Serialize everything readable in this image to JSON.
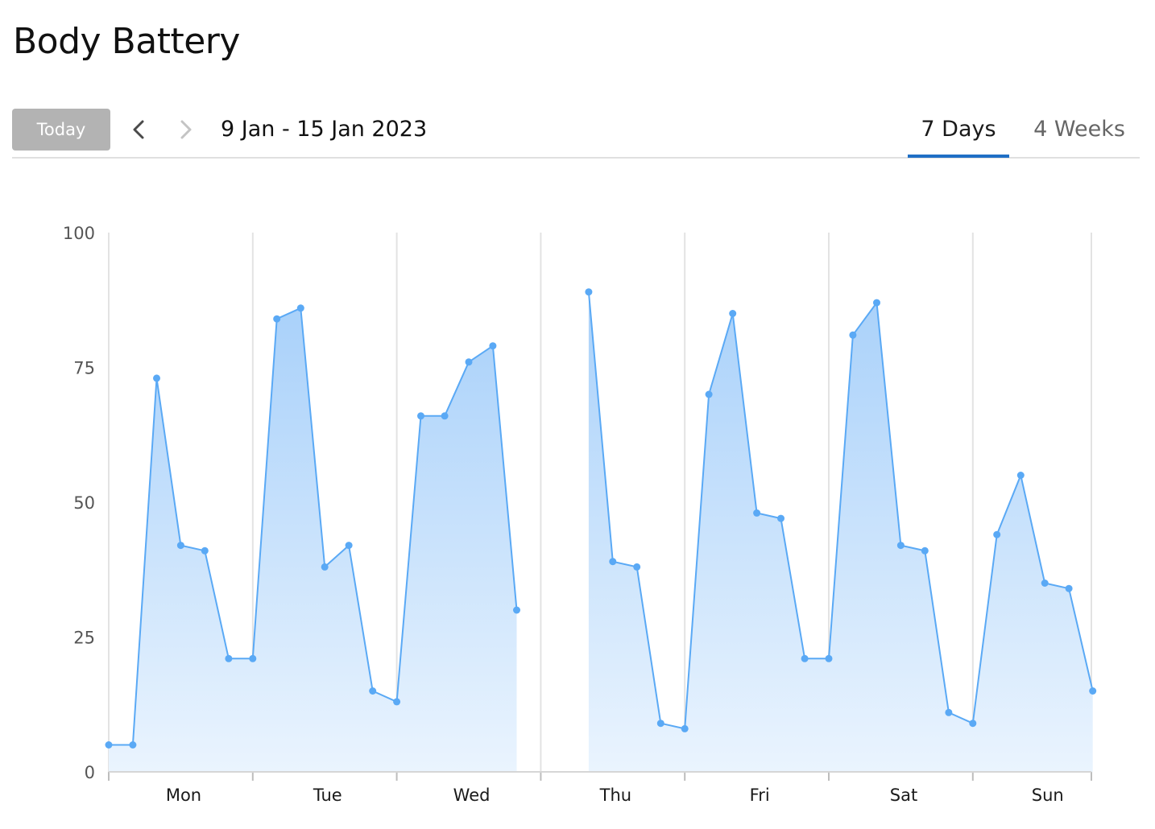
{
  "header": {
    "title": "Body Battery"
  },
  "toolbar": {
    "today_label": "Today",
    "date_range": "9 Jan - 15 Jan 2023",
    "tabs": [
      {
        "label": "7 Days",
        "active": true
      },
      {
        "label": "4 Weeks",
        "active": false
      }
    ]
  },
  "colors": {
    "line": "#5aa9f5",
    "fill_top": "#a9d1fa",
    "fill_bottom": "#eaf4fe",
    "grid": "#e3e3e3",
    "tab_active": "#1f6fc5"
  },
  "chart_data": {
    "type": "area",
    "ylim": [
      0,
      100
    ],
    "yticks": [
      0,
      25,
      50,
      75,
      100
    ],
    "days": [
      "Mon",
      "Tue",
      "Wed",
      "Thu",
      "Fri",
      "Sat",
      "Sun"
    ],
    "grid": true,
    "segments": [
      {
        "x": [
          0.0,
          0.167,
          0.333,
          0.5,
          0.667,
          0.833,
          1.0,
          1.167,
          1.333,
          1.5,
          1.667,
          1.833,
          2.0,
          2.167,
          2.333,
          2.5,
          2.667,
          2.833
        ],
        "y": [
          5,
          5,
          73,
          42,
          41,
          21,
          21,
          84,
          86,
          38,
          42,
          15,
          13,
          66,
          66,
          76,
          79,
          30
        ]
      },
      {
        "x": [
          3.333,
          3.5,
          3.667,
          3.833,
          4.0,
          4.167,
          4.333,
          4.5,
          4.667,
          4.833,
          5.0,
          5.167,
          5.333,
          5.5,
          5.667,
          5.833,
          6.0,
          6.167,
          6.333,
          6.5,
          6.667,
          6.833
        ],
        "y": [
          89,
          39,
          38,
          9,
          8,
          70,
          85,
          48,
          47,
          21,
          21,
          81,
          87,
          42,
          41,
          11,
          9,
          44,
          55,
          35,
          34,
          15
        ]
      }
    ]
  }
}
